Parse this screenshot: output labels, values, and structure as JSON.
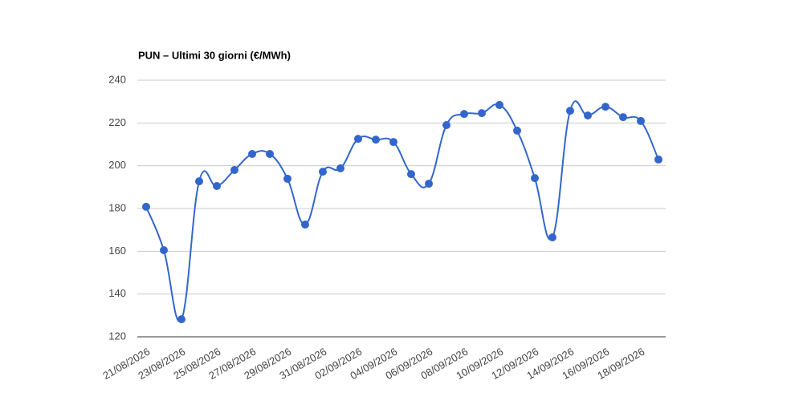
{
  "chart_data": {
    "type": "line",
    "title": "PUN – Ultimi 30 giorni (€/MWh)",
    "categories": [
      "21/08/2026",
      null,
      "23/08/2026",
      null,
      "25/08/2026",
      null,
      "27/08/2026",
      null,
      "29/08/2026",
      null,
      "31/08/2026",
      null,
      "02/09/2026",
      null,
      "04/09/2026",
      null,
      "06/09/2026",
      null,
      "08/09/2026",
      null,
      "10/09/2026",
      null,
      "12/09/2026",
      null,
      "14/09/2026",
      null,
      "16/09/2026",
      null,
      "18/09/2026",
      null
    ],
    "values": [
      180.8,
      160.5,
      128.2,
      192.7,
      190.5,
      198,
      205.5,
      205.5,
      193.9,
      172.5,
      197.2,
      198.8,
      212.6,
      212.2,
      211.1,
      196.1,
      191.6,
      219,
      224.2,
      224.6,
      228.4,
      216.4,
      194.2,
      166.5,
      225.7,
      223.5,
      227.6,
      222.7,
      220.9,
      202.9
    ],
    "color": "#3366cc",
    "ylim": [
      120,
      240
    ],
    "yticks": [
      120,
      140,
      160,
      180,
      200,
      220,
      240
    ],
    "grid": true
  }
}
